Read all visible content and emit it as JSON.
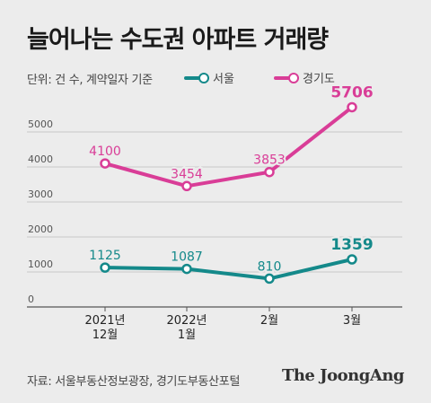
{
  "title": "늘어나는 수도권 아파트 거래량",
  "subtitle": "단위: 건 수, 계약일자 기준",
  "source": "자료: 서울부동산정보광장, 경기도부동산포털",
  "logo": "The JoongAng",
  "chart_data": {
    "type": "line",
    "categories": [
      [
        "2021년",
        "12월"
      ],
      [
        "2022년",
        "1월"
      ],
      [
        "2월"
      ],
      [
        "3월"
      ]
    ],
    "series": [
      {
        "name": "서울",
        "color": "#14898a",
        "values": [
          1125,
          1087,
          810,
          1359
        ]
      },
      {
        "name": "경기도",
        "color": "#d93d97",
        "values": [
          4100,
          3454,
          3853,
          5706
        ]
      }
    ],
    "yticks": [
      0,
      1000,
      2000,
      3000,
      4000,
      5000
    ],
    "ylim": [
      0,
      6000
    ],
    "grid": true,
    "legend_position": "top"
  }
}
